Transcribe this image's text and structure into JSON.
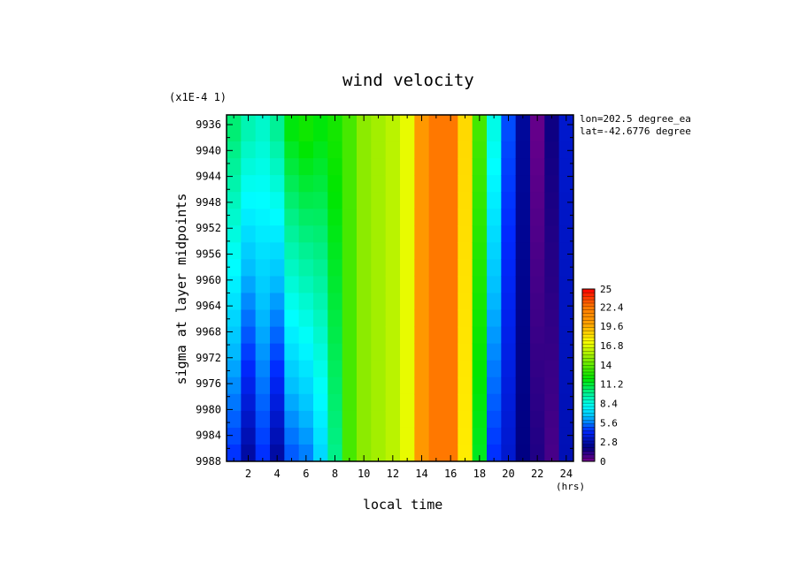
{
  "chart_data": {
    "type": "heatmap",
    "title": "wind velocity",
    "scale_note": "(x1E-4 1)",
    "xlabel": "local time",
    "x_unit": "(hrs)",
    "ylabel": "sigma at layer midpoints",
    "annotations": [
      "lon=202.5 degree_ea",
      "lat=-42.6776 degree"
    ],
    "x_ticks": [
      2,
      4,
      6,
      8,
      10,
      12,
      14,
      16,
      18,
      20,
      22,
      24
    ],
    "y_ticks": [
      9936,
      9940,
      9944,
      9948,
      9952,
      9956,
      9960,
      9964,
      9968,
      9972,
      9976,
      9980,
      9984,
      9988
    ],
    "xlim": [
      0.5,
      24.5
    ],
    "ylim": [
      9988,
      9934.5
    ],
    "colorbar": {
      "min": 0,
      "max": 25,
      "labels": [
        "25",
        "22.4",
        "19.6",
        "16.8",
        "14",
        "11.2",
        "8.4",
        "5.6",
        "2.8",
        "0"
      ],
      "label_values": [
        25,
        22.4,
        19.6,
        16.8,
        14,
        11.2,
        8.4,
        5.6,
        2.8,
        0
      ]
    },
    "grid": false,
    "x": [
      1,
      2,
      3,
      4,
      5,
      6,
      7,
      8,
      9,
      10,
      11,
      12,
      13,
      14,
      15,
      16,
      17,
      18,
      19,
      20,
      21,
      22,
      23,
      24
    ],
    "y": [
      9936,
      9988
    ],
    "z": [
      [
        10.5,
        9.5,
        9.0,
        10.0,
        12.0,
        12.5,
        12.0,
        12.5,
        13.5,
        15.0,
        15.5,
        16.0,
        17.0,
        20.5,
        22.5,
        22.5,
        18.5,
        13.5,
        8.5,
        5.0,
        2.5,
        0.3,
        1.8,
        3.5
      ],
      [
        4.5,
        2.5,
        4.5,
        2.5,
        5.0,
        5.5,
        7.0,
        10.0,
        13.5,
        15.0,
        15.5,
        16.0,
        17.0,
        20.5,
        22.5,
        22.5,
        18.0,
        11.5,
        4.5,
        3.5,
        2.0,
        1.5,
        0.8,
        3.0
      ]
    ]
  }
}
